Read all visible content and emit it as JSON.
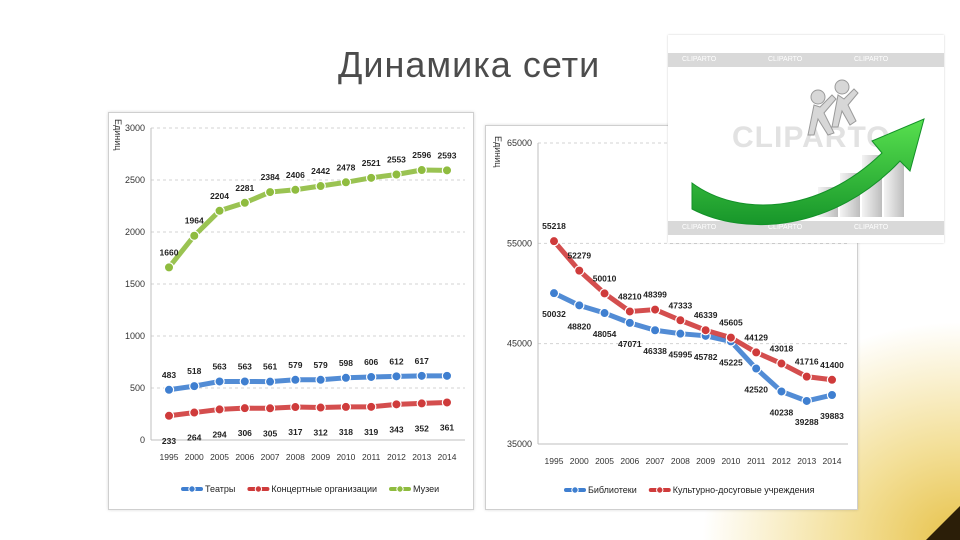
{
  "slide": {
    "title": "Динамика сети",
    "accent_color": "#e8c24a"
  },
  "chart_data": [
    {
      "type": "line",
      "ylabel": "Единиц",
      "ylim": [
        0,
        3000
      ],
      "yticks": [
        0,
        500,
        1000,
        1500,
        2000,
        2500,
        3000
      ],
      "categories": [
        "1995",
        "2000",
        "2005",
        "2006",
        "2007",
        "2008",
        "2009",
        "2010",
        "2011",
        "2012",
        "2013",
        "2014"
      ],
      "grid": true,
      "legend": "bottom",
      "series": [
        {
          "name": "Театры",
          "color": "#3f7fd0",
          "values": [
            483,
            518,
            563,
            563,
            561,
            579,
            579,
            598,
            606,
            612,
            617,
            617
          ],
          "labels": [
            "483",
            "518",
            "563",
            "563",
            "561",
            "579",
            "579",
            "598",
            "606",
            "612",
            "617",
            ""
          ]
        },
        {
          "name": "Концертные организации",
          "color": "#cf3b3b",
          "values": [
            233,
            264,
            294,
            306,
            305,
            317,
            312,
            318,
            319,
            343,
            352,
            361
          ],
          "labels": [
            "233",
            "264",
            "294",
            "306",
            "305",
            "317",
            "312",
            "318",
            "319",
            "343",
            "352",
            "361"
          ]
        },
        {
          "name": "Музеи",
          "color": "#8fbc3f",
          "values": [
            1660,
            1964,
            2204,
            2281,
            2384,
            2406,
            2442,
            2478,
            2521,
            2553,
            2596,
            2593
          ],
          "labels": [
            "1660",
            "1964",
            "2204",
            "2281",
            "2384",
            "2406",
            "2442",
            "2478",
            "2521",
            "2553",
            "2596",
            "2593"
          ]
        }
      ]
    },
    {
      "type": "line",
      "ylabel": "Единиц",
      "ylim": [
        35000,
        65000
      ],
      "yticks": [
        35000,
        45000,
        55000,
        65000
      ],
      "categories": [
        "1995",
        "2000",
        "2005",
        "2006",
        "2007",
        "2008",
        "2009",
        "2010",
        "2011",
        "2012",
        "2013",
        "2014"
      ],
      "grid": true,
      "legend": "bottom",
      "series": [
        {
          "name": "Библиотеки",
          "color": "#3f7fd0",
          "values": [
            50032,
            48820,
            48054,
            47071,
            46338,
            45995,
            45782,
            45225,
            42520,
            40238,
            39288,
            39883
          ],
          "labels": [
            "50032",
            "48820",
            "48054",
            "47071",
            "46338",
            "45995",
            "45782",
            "45225",
            "42520",
            "40238",
            "39288",
            "39883"
          ]
        },
        {
          "name": "Культурно-досуговые учреждения",
          "color": "#cf3b3b",
          "values": [
            55218,
            52279,
            50010,
            48210,
            48399,
            47333,
            46339,
            45605,
            44129,
            43018,
            41716,
            41400
          ],
          "labels": [
            "55218",
            "52279",
            "50010",
            "48210",
            "48399",
            "47333",
            "46339",
            "45605",
            "44129",
            "43018",
            "41716",
            "41400"
          ]
        }
      ]
    }
  ],
  "clipart": {
    "watermark": "CLIPARTO",
    "band_text": "CLIPARTO",
    "icon": "growth-arrow-icon",
    "arrow_color": "#2fbf3a"
  }
}
